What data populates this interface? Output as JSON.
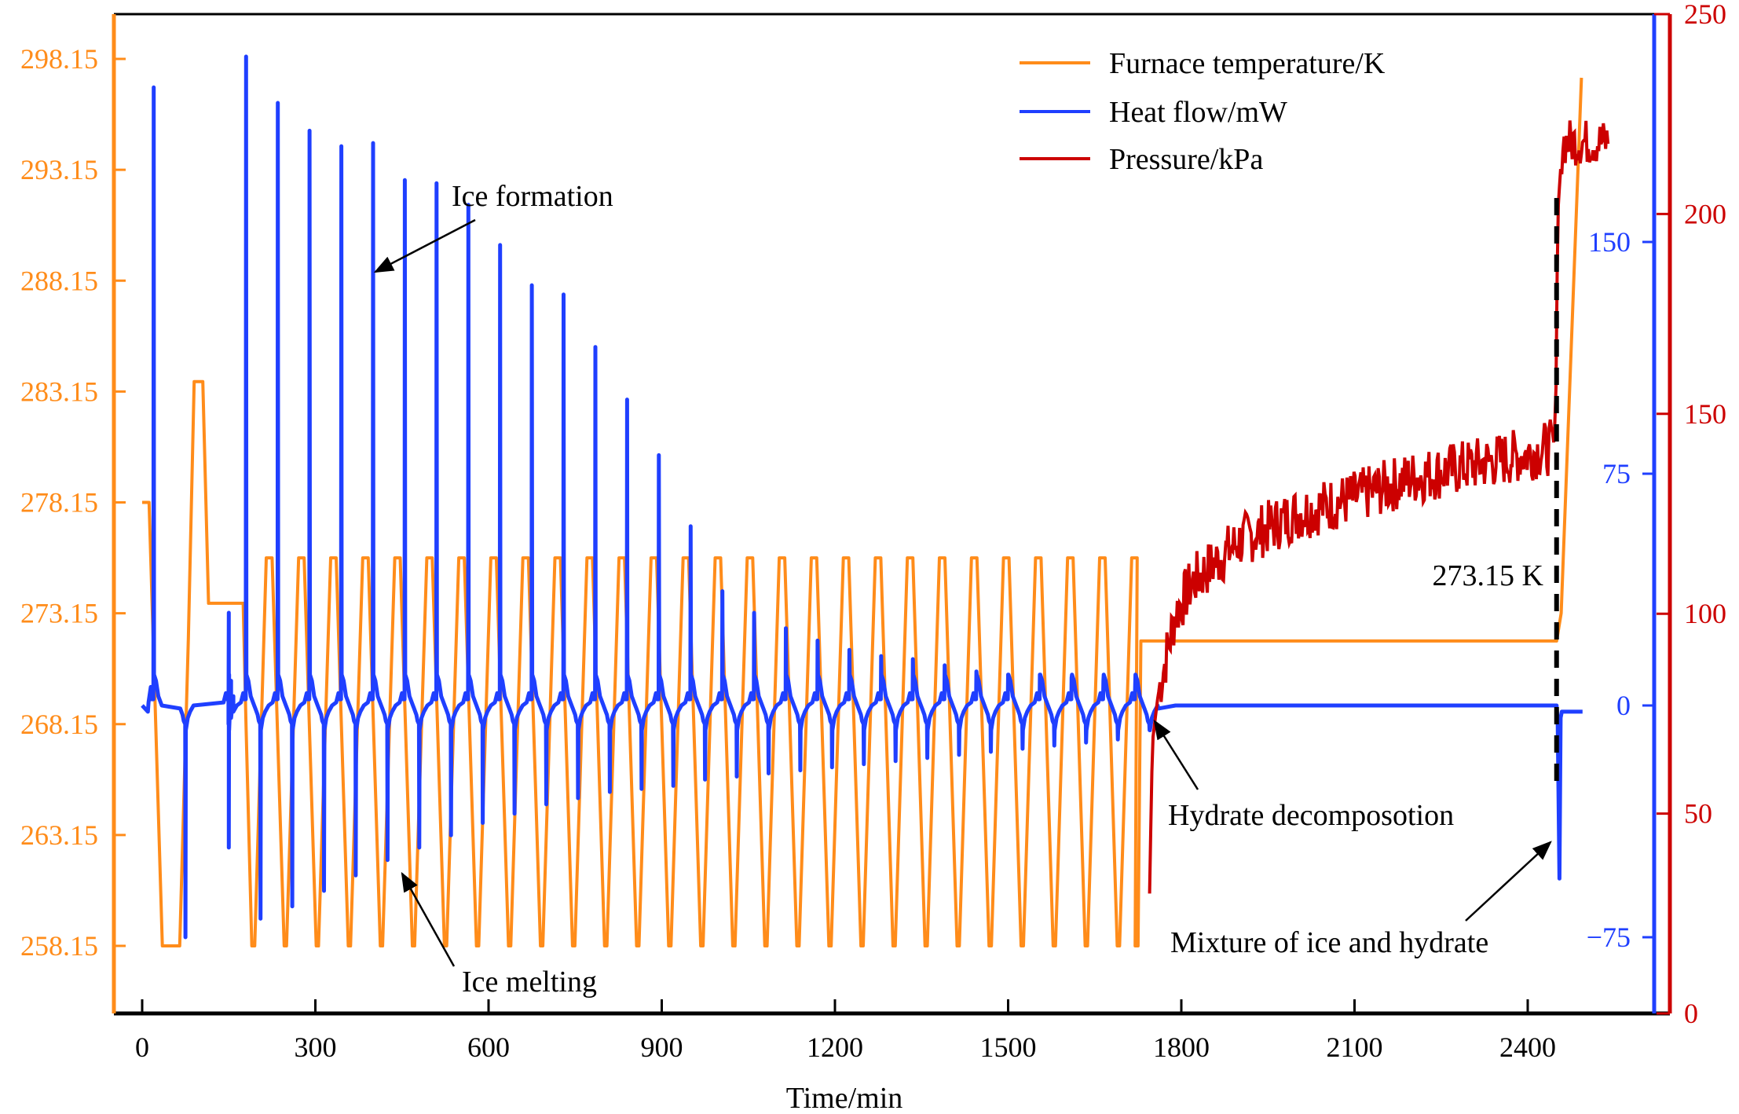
{
  "chart_data": {
    "type": "line",
    "title": "",
    "xlabel": "Time/min",
    "xlim": [
      -40,
      2600
    ],
    "x_ticks": [
      0,
      300,
      600,
      900,
      1200,
      1500,
      1800,
      2100,
      2400
    ],
    "grid": false,
    "legend_position": "top-right",
    "axes": {
      "left": {
        "label": "Furnace temperature/K",
        "color": "#FF8C1A",
        "ylim": [
          254.15,
          301.15
        ],
        "ticks": [
          "258.15",
          "263.15",
          "268.15",
          "273.15",
          "278.15",
          "283.15",
          "288.15",
          "293.15",
          "298.15"
        ]
      },
      "right_inner": {
        "label": "Heat flow/mW",
        "color": "#1F3FFF",
        "ylim": [
          -99,
          225
        ],
        "ticks": [
          "-75",
          "0",
          "75",
          "150"
        ]
      },
      "right_outer": {
        "label": "Pressure/kPa",
        "color": "#CC0000",
        "ylim": [
          0,
          250
        ],
        "ticks": [
          "0",
          "50",
          "100",
          "150",
          "200",
          "250"
        ]
      }
    },
    "series": [
      {
        "name": "Furnace temperature/K",
        "axis": "left",
        "color": "#FF8C1A",
        "description": "Piecewise-linear temperature program; 28 cooling/heating cycles between 258.15 K and 275.65 K from ~180 to ~1720 min, isothermal hold at 271.9 K until ~2450 min, then ramp above 297 K",
        "points": [
          [
            0,
            278.15
          ],
          [
            12,
            278.15
          ],
          [
            35,
            258.15
          ],
          [
            65,
            258.15
          ],
          [
            80,
            272
          ],
          [
            90,
            283.6
          ],
          [
            105,
            283.6
          ],
          [
            115,
            273.6
          ],
          [
            175,
            273.6
          ],
          [
            180,
            268
          ],
          [
            190,
            258.15
          ],
          [
            195,
            258.15
          ],
          [
            215,
            275.65
          ],
          [
            225,
            275.65
          ]
        ],
        "cycle": {
          "start": 225,
          "period": 55.5,
          "count": 27,
          "low": 258.15,
          "high": 275.65,
          "end": 1720
        },
        "tail": [
          [
            1720,
            258.15
          ],
          [
            1725,
            258.15
          ],
          [
            1730,
            271.9
          ],
          [
            2450,
            271.9
          ],
          [
            2458,
            273.15
          ],
          [
            2493,
            297.3
          ]
        ]
      },
      {
        "name": "Heat flow/mW",
        "axis": "right_inner",
        "color": "#1F3FFF",
        "baseline": 0,
        "exothermic_peaks": [
          [
            20,
            200
          ],
          [
            150,
            30
          ],
          [
            180,
            210
          ],
          [
            235,
            195
          ],
          [
            290,
            186
          ],
          [
            345,
            181
          ],
          [
            400,
            182
          ],
          [
            455,
            170
          ],
          [
            510,
            169
          ],
          [
            565,
            162
          ],
          [
            620,
            149
          ],
          [
            675,
            136
          ],
          [
            730,
            133
          ],
          [
            785,
            116
          ],
          [
            840,
            99
          ],
          [
            895,
            81
          ],
          [
            950,
            58
          ],
          [
            1005,
            37
          ],
          [
            1060,
            30
          ],
          [
            1115,
            25
          ],
          [
            1170,
            21
          ],
          [
            1225,
            18
          ],
          [
            1280,
            16
          ],
          [
            1335,
            15
          ],
          [
            1390,
            13
          ],
          [
            1445,
            11
          ],
          [
            1500,
            10
          ],
          [
            1555,
            10
          ],
          [
            1610,
            9
          ],
          [
            1665,
            8
          ],
          [
            1720,
            6
          ]
        ],
        "endothermic_troughs": [
          [
            75,
            -75
          ],
          [
            150,
            -46
          ],
          [
            205,
            -69
          ],
          [
            260,
            -65
          ],
          [
            315,
            -60
          ],
          [
            370,
            -55
          ],
          [
            425,
            -50
          ],
          [
            480,
            -46
          ],
          [
            535,
            -42
          ],
          [
            590,
            -38
          ],
          [
            645,
            -35
          ],
          [
            700,
            -32
          ],
          [
            755,
            -30
          ],
          [
            810,
            -28
          ],
          [
            865,
            -27
          ],
          [
            920,
            -26
          ],
          [
            975,
            -24
          ],
          [
            1030,
            -23
          ],
          [
            1085,
            -22
          ],
          [
            1140,
            -21
          ],
          [
            1195,
            -20
          ],
          [
            1250,
            -19
          ],
          [
            1305,
            -18
          ],
          [
            1360,
            -17
          ],
          [
            1415,
            -16
          ],
          [
            1470,
            -15
          ],
          [
            1525,
            -14
          ],
          [
            1580,
            -13
          ],
          [
            1635,
            -12
          ],
          [
            1690,
            -11
          ],
          [
            1745,
            -8
          ],
          [
            2455,
            -56
          ]
        ],
        "steady_after": 1760
      },
      {
        "name": "Pressure/kPa",
        "axis": "right_outer",
        "color": "#CC0000",
        "points": [
          [
            1745,
            30
          ],
          [
            1750,
            68
          ],
          [
            1760,
            80
          ],
          [
            1790,
            100
          ],
          [
            1820,
            108
          ],
          [
            1900,
            118
          ],
          [
            2000,
            125
          ],
          [
            2100,
            129
          ],
          [
            2200,
            134
          ],
          [
            2300,
            137
          ],
          [
            2400,
            140
          ],
          [
            2448,
            142
          ],
          [
            2452,
            200
          ],
          [
            2460,
            218
          ],
          [
            2540,
            218
          ]
        ]
      }
    ],
    "annotations": [
      {
        "text": "Ice formation",
        "target_x": 400,
        "target_series": "Heat flow/mW"
      },
      {
        "text": "Ice melting",
        "target_x": 435,
        "target_series": "Heat flow/mW"
      },
      {
        "text": "Hydrate decomposotion",
        "target_x": 1745,
        "target_series": "Heat flow/mW"
      },
      {
        "text": "Mixture of ice and hydrate",
        "target_x": 2455,
        "target_series": "Heat flow/mW"
      },
      {
        "text": "273.15 K",
        "target_x": 2450,
        "marker": "vertical dashed line"
      }
    ]
  },
  "legend": [
    {
      "label": "Furnace temperature/K",
      "color": "#FF8C1A"
    },
    {
      "label": "Heat flow/mW",
      "color": "#1F3FFF"
    },
    {
      "label": "Pressure/kPa",
      "color": "#CC0000"
    }
  ]
}
